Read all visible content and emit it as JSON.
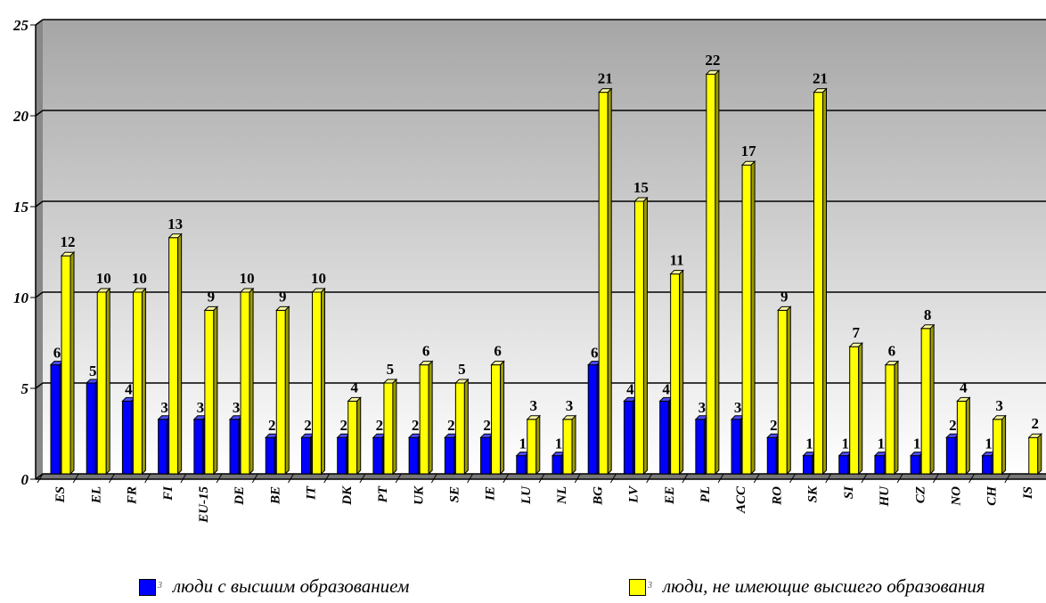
{
  "chart_data": {
    "type": "bar",
    "title": "",
    "xlabel": "",
    "ylabel": "",
    "ylim": [
      0,
      25
    ],
    "yticks": [
      "0",
      "5",
      "10",
      "15",
      "20",
      "25"
    ],
    "grid": true,
    "legend_position": "bottom",
    "categories": [
      "ES",
      "EL",
      "FR",
      "FI",
      "EU-15",
      "DE",
      "BE",
      "IT",
      "DK",
      "PT",
      "UK",
      "SE",
      "IE",
      "LU",
      "NL",
      "BG",
      "LV",
      "EE",
      "PL",
      "ACC",
      "RO",
      "SK",
      "SI",
      "HU",
      "CZ",
      "NO",
      "CH",
      "IS"
    ],
    "series": [
      {
        "name": "люди с высшим образованием",
        "legend_num": "3",
        "color": "#0000ff",
        "values": [
          6,
          5,
          4,
          3,
          3,
          3,
          2,
          2,
          2,
          2,
          2,
          2,
          2,
          1,
          1,
          6,
          4,
          4,
          3,
          3,
          2,
          1,
          1,
          1,
          1,
          2,
          1,
          0
        ]
      },
      {
        "name": "люди, не имеющие высшего образования",
        "legend_num": "3",
        "color": "#ffff00",
        "values": [
          12,
          10,
          10,
          13,
          9,
          10,
          9,
          10,
          4,
          5,
          6,
          5,
          6,
          3,
          3,
          21,
          15,
          11,
          22,
          17,
          9,
          21,
          7,
          6,
          8,
          4,
          3,
          2
        ]
      }
    ]
  }
}
